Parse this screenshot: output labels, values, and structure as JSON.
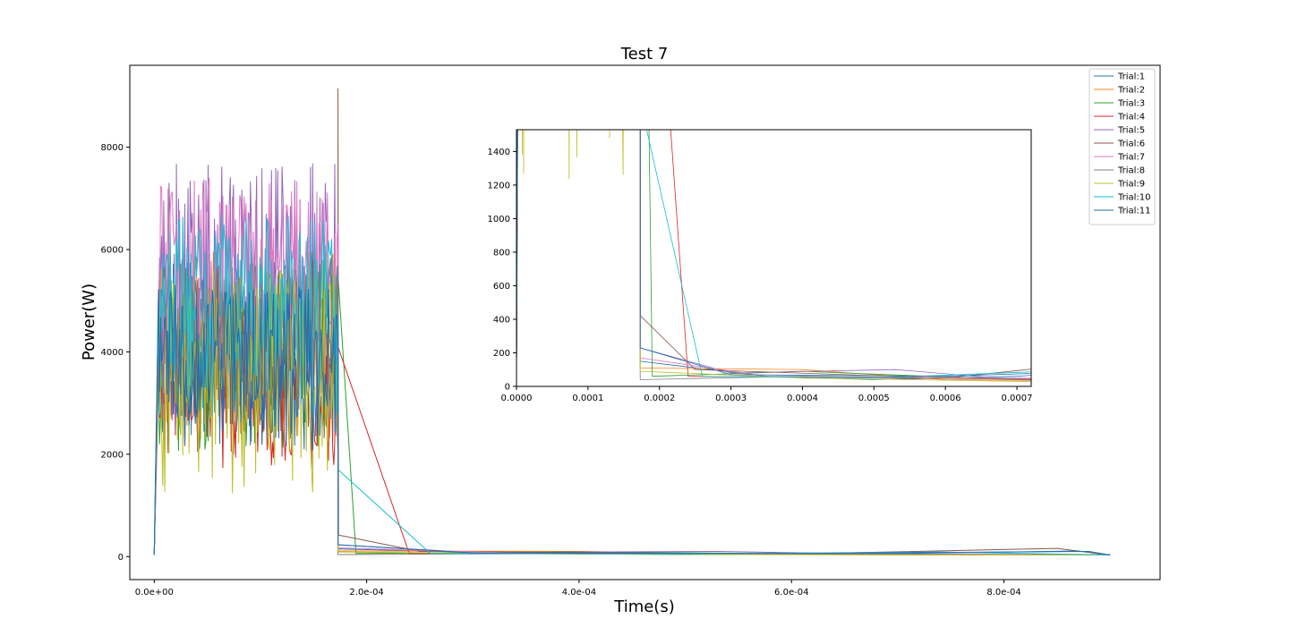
{
  "chart_data": [
    {
      "type": "line",
      "title": "Test 7",
      "xlabel": "Time(s)",
      "ylabel": "Power(W)",
      "xlim": [
        -2.3e-05,
        0.000947
      ],
      "ylim": [
        -450,
        9600
      ],
      "x_ticks": [
        0,
        0.0002,
        0.0004,
        0.0006,
        0.0008
      ],
      "x_tick_labels": [
        "0.0e+00",
        "2.0e-04",
        "4.0e-04",
        "6.0e-04",
        "8.0e-04"
      ],
      "y_ticks": [
        0,
        2000,
        4000,
        6000,
        8000
      ],
      "y_tick_labels": [
        "0",
        "2000",
        "4000",
        "6000",
        "8000"
      ],
      "legend_position": "top-right",
      "grid": false,
      "burst": {
        "x_start": 4e-06,
        "x_end": 0.000173
      },
      "series": [
        {
          "name": "Trial:1",
          "color": "#1f77b4",
          "burst_range": [
            2100,
            5800
          ],
          "tail": [
            [
              0.000173,
              150
            ],
            [
              0.00035,
              60
            ],
            [
              0.0005,
              40
            ],
            [
              0.0007,
              60
            ],
            [
              0.00087,
              110
            ],
            [
              0.0009,
              30
            ]
          ]
        },
        {
          "name": "Trial:2",
          "color": "#ff7f0e",
          "burst_range": [
            2200,
            6000
          ],
          "tail": [
            [
              0.000173,
              110
            ],
            [
              0.0004,
              100
            ],
            [
              0.0006,
              40
            ],
            [
              0.0009,
              30
            ]
          ]
        },
        {
          "name": "Trial:3",
          "color": "#2ca02c",
          "burst_range": [
            2000,
            5900
          ],
          "tail": [
            [
              0.000173,
              5500
            ],
            [
              0.00019,
              60
            ],
            [
              0.0004,
              90
            ],
            [
              0.0007,
              40
            ],
            [
              0.0009,
              30
            ]
          ]
        },
        {
          "name": "Trial:4",
          "color": "#d62728",
          "burst_range": [
            1700,
            4300
          ],
          "tail": [
            [
              0.000173,
              4100
            ],
            [
              0.00024,
              60
            ],
            [
              0.0005,
              50
            ],
            [
              0.0009,
              40
            ]
          ]
        },
        {
          "name": "Trial:5",
          "color": "#9467bd",
          "burst_range": [
            2300,
            7700
          ],
          "tail": [
            [
              0.000173,
              230
            ],
            [
              0.0003,
              80
            ],
            [
              0.00053,
              100
            ],
            [
              0.0007,
              40
            ],
            [
              0.0009,
              30
            ]
          ]
        },
        {
          "name": "Trial:6",
          "color": "#8c564b",
          "burst_range": [
            2000,
            5800
          ],
          "tail": [
            [
              0.000173,
              9150
            ],
            [
              0.0001735,
              420
            ],
            [
              0.00025,
              100
            ],
            [
              0.0006,
              50
            ],
            [
              0.00085,
              160
            ],
            [
              0.0009,
              30
            ]
          ]
        },
        {
          "name": "Trial:7",
          "color": "#e377c2",
          "burst_range": [
            3200,
            7400
          ],
          "tail": [
            [
              0.000173,
              170
            ],
            [
              0.00035,
              60
            ],
            [
              0.0007,
              50
            ],
            [
              0.0009,
              30
            ]
          ]
        },
        {
          "name": "Trial:8",
          "color": "#7f7f7f",
          "burst_range": [
            2200,
            5800
          ],
          "tail": [
            [
              0.000173,
              40
            ],
            [
              0.0004,
              60
            ],
            [
              0.0009,
              30
            ]
          ]
        },
        {
          "name": "Trial:9",
          "color": "#bcbd22",
          "burst_range": [
            1200,
            5600
          ],
          "tail": [
            [
              0.000173,
              90
            ],
            [
              0.0004,
              50
            ],
            [
              0.0007,
              30
            ],
            [
              0.0009,
              30
            ]
          ]
        },
        {
          "name": "Trial:10",
          "color": "#17becf",
          "burst_range": [
            2700,
            6700
          ],
          "tail": [
            [
              0.000173,
              1700
            ],
            [
              0.00026,
              60
            ],
            [
              0.0005,
              50
            ],
            [
              0.00074,
              90
            ],
            [
              0.0009,
              30
            ]
          ]
        },
        {
          "name": "Trial:11",
          "color": "#1f6fb0",
          "burst_range": [
            2000,
            5300
          ],
          "tail": [
            [
              0.000173,
              230
            ],
            [
              0.0003,
              70
            ],
            [
              0.0006,
              60
            ],
            [
              0.00088,
              100
            ],
            [
              0.0009,
              30
            ]
          ]
        }
      ]
    },
    {
      "type": "line",
      "title": "",
      "xlim": [
        0,
        0.00072
      ],
      "ylim": [
        0,
        1530
      ],
      "x_ticks": [
        0,
        0.0001,
        0.0002,
        0.0003,
        0.0004,
        0.0005,
        0.0006,
        0.0007
      ],
      "x_tick_labels": [
        "0.0000",
        "0.0001",
        "0.0002",
        "0.0003",
        "0.0004",
        "0.0005",
        "0.0006",
        "0.0007"
      ],
      "y_ticks": [
        0,
        200,
        400,
        600,
        800,
        1000,
        1200,
        1400
      ],
      "y_tick_labels": [
        "0",
        "200",
        "400",
        "600",
        "800",
        "1000",
        "1200",
        "1400"
      ]
    }
  ]
}
